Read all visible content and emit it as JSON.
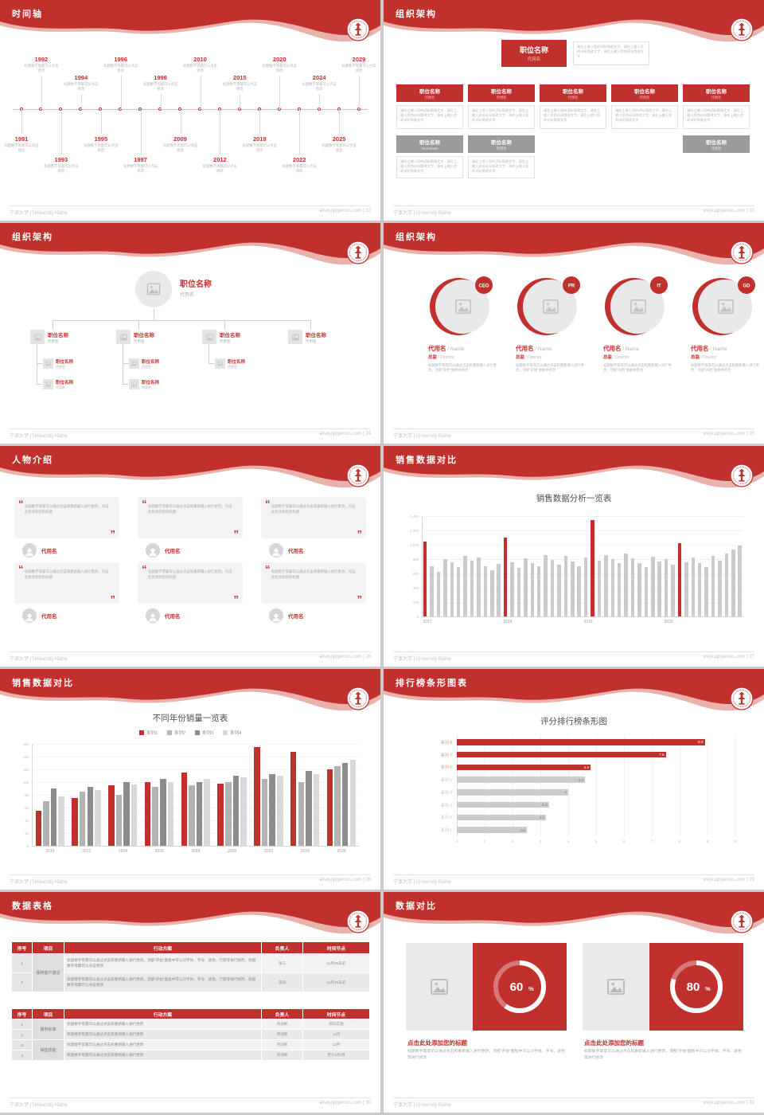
{
  "theme": {
    "red": "#c0302c",
    "red_light": "#e9b2ad",
    "gray_box": "#9a9a9a",
    "bar_gray": "#cbcbcb"
  },
  "footer": {
    "left": "宁波大学 | University Name",
    "site": "www.pptgenius.com"
  },
  "placeholder": {
    "caption_small": "标题数字等都可以点击修改",
    "input_hint": "请在上输入您的词句简改文字，请在上输入您的词句简改文字，请在上输入您的词句简改文字",
    "edit_hint_long": "标题数字等都可以通过点击和重新输入进行更改，顶部“开始”面板中可以对字体、字号、颜色、行距等进行修改，标题数字等都可以点击更改",
    "edit_hint_short": "标题数字等都可以通过点击和重新输入进行更改",
    "circle_hint": "标题数字等等可以通过点击和重新输入进行更改，顶部“开始”面板中修改",
    "quote_text": "标题数字等都可以通过点击和重新输入进行更改，点击此处添加您的标题"
  },
  "slides": {
    "timeline": {
      "title": "时间轴",
      "page": "22",
      "events": [
        {
          "year": "1991",
          "pos": "b1"
        },
        {
          "year": "1992",
          "pos": "t1"
        },
        {
          "year": "1993",
          "pos": "b2"
        },
        {
          "year": "1994",
          "pos": "t2"
        },
        {
          "year": "1995",
          "pos": "b1"
        },
        {
          "year": "1996",
          "pos": "t1"
        },
        {
          "year": "1997",
          "pos": "b2"
        },
        {
          "year": "1998",
          "pos": "t2"
        },
        {
          "year": "2009",
          "pos": "b1"
        },
        {
          "year": "2010",
          "pos": "t1"
        },
        {
          "year": "2012",
          "pos": "b2"
        },
        {
          "year": "2015",
          "pos": "t2"
        },
        {
          "year": "2019",
          "pos": "b1"
        },
        {
          "year": "2020",
          "pos": "t1"
        },
        {
          "year": "2022",
          "pos": "b2"
        },
        {
          "year": "2024",
          "pos": "t2"
        },
        {
          "year": "2025",
          "pos": "b1"
        },
        {
          "year": "2029",
          "pos": "t1"
        }
      ]
    },
    "org_boxes": {
      "title": "组织架构",
      "page": "23",
      "main": {
        "name": "职位名称",
        "sub": "代用名"
      },
      "columns": [
        {
          "name": "职位名称",
          "sub": "代用名"
        },
        {
          "name": "职位名称",
          "sub": "代用名"
        },
        {
          "name": "职位名称",
          "sub": "代用名"
        },
        {
          "name": "职位名称",
          "sub": "代用名"
        },
        {
          "name": "职位名称",
          "sub": "代用名"
        }
      ],
      "gray": [
        {
          "name": "职位名称",
          "sub": "Your Name"
        },
        {
          "name": "职位名称",
          "sub": "代用名"
        },
        {
          "name": "职位名称",
          "sub": "代用名"
        }
      ]
    },
    "org_tree": {
      "title": "组织架构",
      "page": "24",
      "root": {
        "name": "职位名称",
        "sub": "代用名"
      },
      "child": {
        "name": "职位名称",
        "sub": "代用名"
      },
      "nodes": [
        {
          "name": "职位名称",
          "sub": "代用名",
          "children": 2
        },
        {
          "name": "职位名称",
          "sub": "代用名",
          "children": 2
        },
        {
          "name": "职位名称",
          "sub": "代用名",
          "children": 1
        },
        {
          "name": "职位名称",
          "sub": "代用名",
          "children": 0
        }
      ]
    },
    "org_circles": {
      "title": "组织架构",
      "page": "25",
      "items": [
        {
          "badge": "CEO",
          "name": "代用名",
          "name_en": "Name",
          "role": "总监",
          "role_en": "Director"
        },
        {
          "badge": "PR",
          "name": "代用名",
          "name_en": "Name",
          "role": "总监",
          "role_en": "Director"
        },
        {
          "badge": "IT",
          "name": "代用名",
          "name_en": "Name",
          "role": "总监",
          "role_en": "Director"
        },
        {
          "badge": "GD",
          "name": "代用名",
          "name_en": "Name",
          "role": "总监",
          "role_en": "Director"
        }
      ]
    },
    "people": {
      "title": "人物介绍",
      "page": "26",
      "name": "代用名"
    },
    "chart_weekly": {
      "title": "销售数据对比",
      "page": "27",
      "chart": {
        "type": "bar",
        "heading": "销售数据分析一览表",
        "years": [
          "2017",
          "2018",
          "2019",
          "2020"
        ],
        "year_indices": [
          0,
          12,
          24,
          36
        ],
        "red_indices": [
          0,
          12,
          25,
          38
        ],
        "ylim": [
          0,
          1400
        ],
        "ytick": 200,
        "values": [
          1050,
          700,
          620,
          800,
          760,
          690,
          850,
          780,
          820,
          700,
          640,
          730,
          1100,
          760,
          680,
          810,
          750,
          700,
          860,
          790,
          720,
          840,
          770,
          700,
          820,
          1350,
          780,
          860,
          800,
          740,
          880,
          810,
          750,
          690,
          830,
          770,
          800,
          720,
          1020,
          760,
          820,
          750,
          690,
          850,
          780,
          880,
          930,
          990
        ]
      }
    },
    "chart_grouped": {
      "title": "销售数据对比",
      "page": "28",
      "chart": {
        "type": "grouped-bar",
        "heading": "不同年份销量一览表",
        "categories": [
          "2010",
          "2012",
          "2014",
          "2016",
          "2018",
          "2020",
          "2022",
          "2024",
          "2026"
        ],
        "ylim": [
          0,
          160
        ],
        "ytick": 20,
        "series": [
          {
            "name": "系列1",
            "color": "#c0302c",
            "values": [
              55,
              75,
              95,
              100,
              115,
              98,
              155,
              148,
              120
            ]
          },
          {
            "name": "系列2",
            "color": "#b3b3b3",
            "values": [
              70,
              85,
              80,
              92,
              95,
              100,
              105,
              100,
              125
            ]
          },
          {
            "name": "系列3",
            "color": "#8c8c8c",
            "values": [
              90,
              92,
              100,
              105,
              100,
              110,
              112,
              118,
              130
            ]
          },
          {
            "name": "系列4",
            "color": "#d9d9d9",
            "values": [
              78,
              88,
              96,
              100,
              105,
              108,
              110,
              112,
              135
            ]
          }
        ]
      }
    },
    "chart_ranking": {
      "title": "排行榜条形图表",
      "page": "29",
      "chart": {
        "type": "bar-horizontal",
        "heading": "评分排行榜条形图",
        "xlim": [
          0,
          10
        ],
        "rows": [
          {
            "label": "系列 8",
            "value": 8.9,
            "red": true
          },
          {
            "label": "系列 7",
            "value": 7.5,
            "red": true
          },
          {
            "label": "系列 6",
            "value": 4.8,
            "red": true
          },
          {
            "label": "系列 5",
            "value": 4.6,
            "red": false
          },
          {
            "label": "系列 4",
            "value": 4,
            "red": false
          },
          {
            "label": "系列 3",
            "value": 3.3,
            "red": false
          },
          {
            "label": "系列 2",
            "value": 3.2,
            "red": false
          },
          {
            "label": "系列 1",
            "value": 2.5,
            "red": false
          }
        ]
      }
    },
    "tables": {
      "title": "数据表格",
      "page": "30",
      "headers": [
        "序号",
        "项目",
        "行动方案",
        "负责人",
        "时间节点"
      ],
      "table1": {
        "rows": [
          {
            "no": "1",
            "project": "保持客户激活",
            "project_span": 2,
            "owner": "张三",
            "due": "11月30日前"
          },
          {
            "no": "2",
            "owner": "李四",
            "due": "11月15日前"
          }
        ]
      },
      "table2": {
        "rows": [
          {
            "no": "1",
            "project": "服务标准",
            "project_span": 2,
            "owner": "内训师",
            "due": "即日实施"
          },
          {
            "no": "2",
            "owner": "内训师",
            "due": "11月"
          },
          {
            "no": "3",
            "project": "销售技能",
            "project_span": 2,
            "owner": "内训师",
            "due": "11月"
          },
          {
            "no": "4",
            "owner": "内训师",
            "due": "至少1次/月"
          }
        ]
      }
    },
    "compare": {
      "title": "数据对比",
      "page": "31",
      "heading": "点击此处添加您的标题",
      "body": "标题数字等等可以通过点击和重新输入进行更改，顶部“开始”面板中可以对字体、字号、颜色等进行修改",
      "panels": [
        {
          "percent": 60
        },
        {
          "percent": 80
        }
      ]
    }
  }
}
